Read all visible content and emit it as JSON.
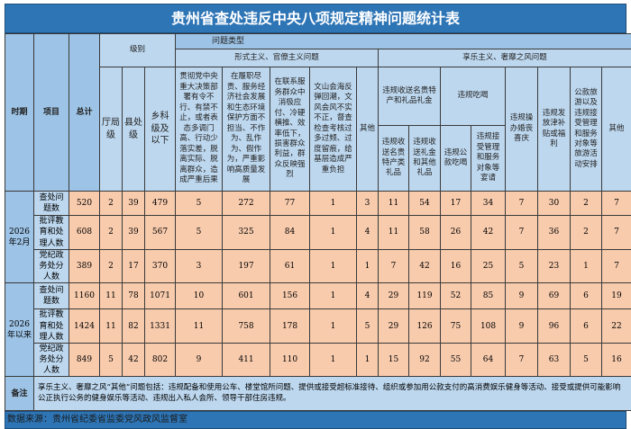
{
  "title": "贵州省查处违反中央八项规定精神问题统计表",
  "headers": {
    "period": "时期",
    "item": "项目",
    "total": "总计",
    "level": "级别",
    "levels": [
      "厅局级",
      "县处级",
      "乡科级及以下"
    ],
    "problem_type": "问题类型",
    "formalism": "形式主义、官僚主义问题",
    "formalism_cols": [
      "贯彻党中央重大决策部署有令不行、有禁不止，或者表态多调门高、行动少落实差，脱离实际、脱离群众，造成严重后果",
      "在履职尽责、服务经济社会发展和生态环境保护方面不担当、不作为、乱作为、假作为，严重影响高质量发展",
      "在联系服务群众中消极应付、冷硬横推、效率低下，损害群众利益，群众反映强烈",
      "文山会海反弹回潮，文风会风不实不正，督查检查考核过多过频、过度留痕，给基层造成严重负担",
      "其他"
    ],
    "hedonism": "享乐主义、奢靡之风问题",
    "gift_group": "违规收送名贵特产和礼品礼金",
    "gift_cols": [
      "违规收送名贵特产类礼品",
      "违规收送礼金和其他礼品"
    ],
    "meal_group": "违规吃喝",
    "meal_cols": [
      "违规公款吃喝",
      "违规接受管理和服务对象等宴请"
    ],
    "hedonism_cols": [
      "违规操办婚丧喜庆",
      "违规发放津补贴或福利",
      "公款旅游以及违规接受管理和服务对象等旅游活动安排",
      "其他"
    ]
  },
  "groups": [
    {
      "period": "2026年2月",
      "rows": [
        {
          "item": "查处问题数",
          "values": [
            520,
            2,
            39,
            479,
            5,
            272,
            77,
            1,
            3,
            11,
            54,
            17,
            34,
            7,
            30,
            2,
            7
          ]
        },
        {
          "item": "批评教育和处理人数",
          "values": [
            608,
            2,
            39,
            567,
            5,
            325,
            84,
            1,
            4,
            11,
            58,
            26,
            42,
            7,
            36,
            2,
            7
          ]
        },
        {
          "item": "党纪政务处分人数",
          "values": [
            389,
            2,
            17,
            370,
            3,
            197,
            61,
            1,
            1,
            7,
            42,
            16,
            25,
            5,
            23,
            1,
            7
          ]
        }
      ]
    },
    {
      "period": "2026年以来",
      "rows": [
        {
          "item": "查处问题数",
          "values": [
            1160,
            11,
            78,
            1071,
            10,
            601,
            156,
            1,
            4,
            29,
            119,
            52,
            85,
            9,
            69,
            6,
            19
          ]
        },
        {
          "item": "批评教育和处理人数",
          "values": [
            1424,
            11,
            82,
            1331,
            11,
            758,
            178,
            1,
            5,
            29,
            126,
            75,
            108,
            9,
            96,
            6,
            22
          ]
        },
        {
          "item": "党纪政务处分人数",
          "values": [
            849,
            5,
            42,
            802,
            9,
            411,
            110,
            1,
            1,
            15,
            92,
            55,
            64,
            7,
            63,
            5,
            16
          ]
        }
      ]
    }
  ],
  "note_label": "备注",
  "note": "享乐主义、奢靡之风“其他”问题包括：违规配备和使用公车、楼堂馆所问题、提供或接受超标准接待、组织或参加用公款支付的高消费娱乐健身等活动、接受或提供可能影响公正执行公务的健身娱乐等活动、违规出入私人会所、领导干部住房违规。",
  "source": "数据来源：贵州省纪委省监委党风政风监督室",
  "colors": {
    "title_bar": "#2e75b6",
    "header": "#bdd7ee",
    "data": "#f8cbad"
  }
}
